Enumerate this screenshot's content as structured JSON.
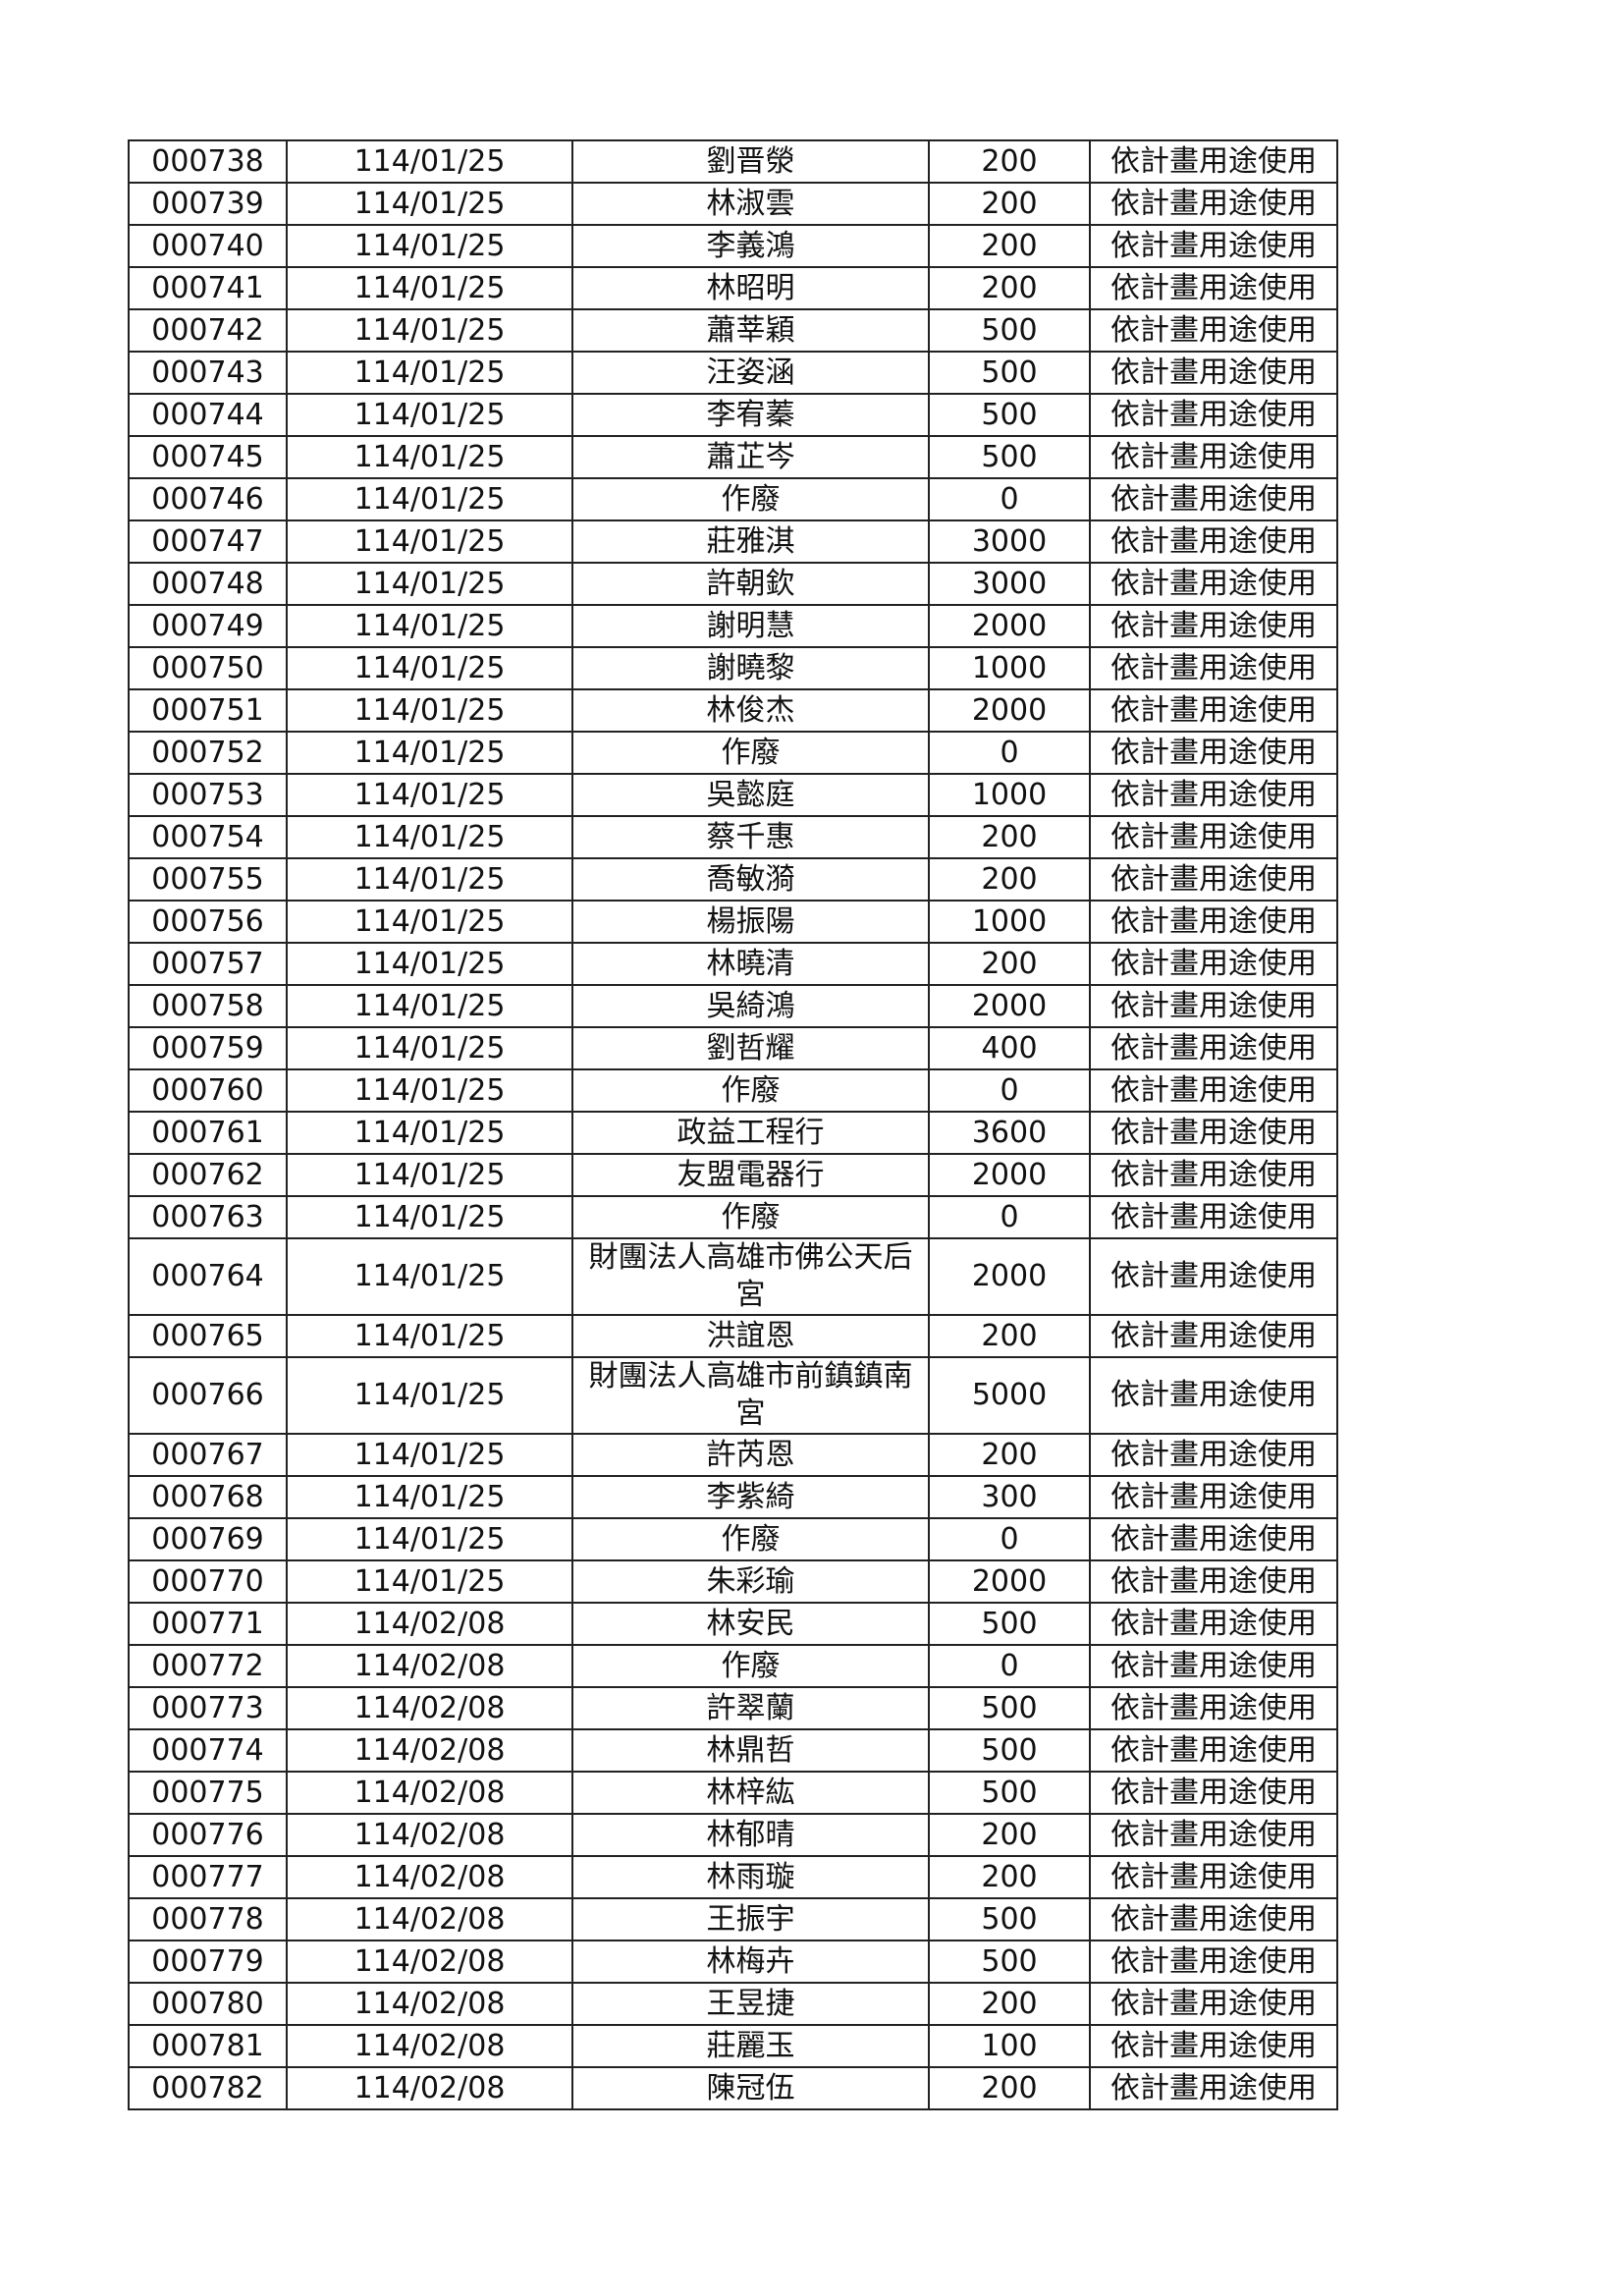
{
  "table": {
    "rows": [
      [
        "000738",
        "114/01/25",
        "劉晋滎",
        "200",
        "依計畫用途使用"
      ],
      [
        "000739",
        "114/01/25",
        "林淑雲",
        "200",
        "依計畫用途使用"
      ],
      [
        "000740",
        "114/01/25",
        "李義鴻",
        "200",
        "依計畫用途使用"
      ],
      [
        "000741",
        "114/01/25",
        "林昭明",
        "200",
        "依計畫用途使用"
      ],
      [
        "000742",
        "114/01/25",
        "蕭莘穎",
        "500",
        "依計畫用途使用"
      ],
      [
        "000743",
        "114/01/25",
        "汪姿涵",
        "500",
        "依計畫用途使用"
      ],
      [
        "000744",
        "114/01/25",
        "李宥蓁",
        "500",
        "依計畫用途使用"
      ],
      [
        "000745",
        "114/01/25",
        "蕭芷岑",
        "500",
        "依計畫用途使用"
      ],
      [
        "000746",
        "114/01/25",
        "作廢",
        "0",
        "依計畫用途使用"
      ],
      [
        "000747",
        "114/01/25",
        "莊雅淇",
        "3000",
        "依計畫用途使用"
      ],
      [
        "000748",
        "114/01/25",
        "許朝欽",
        "3000",
        "依計畫用途使用"
      ],
      [
        "000749",
        "114/01/25",
        "謝明慧",
        "2000",
        "依計畫用途使用"
      ],
      [
        "000750",
        "114/01/25",
        "謝曉黎",
        "1000",
        "依計畫用途使用"
      ],
      [
        "000751",
        "114/01/25",
        "林俊杰",
        "2000",
        "依計畫用途使用"
      ],
      [
        "000752",
        "114/01/25",
        "作廢",
        "0",
        "依計畫用途使用"
      ],
      [
        "000753",
        "114/01/25",
        "吳懿庭",
        "1000",
        "依計畫用途使用"
      ],
      [
        "000754",
        "114/01/25",
        "蔡千惠",
        "200",
        "依計畫用途使用"
      ],
      [
        "000755",
        "114/01/25",
        "喬敏漪",
        "200",
        "依計畫用途使用"
      ],
      [
        "000756",
        "114/01/25",
        "楊振陽",
        "1000",
        "依計畫用途使用"
      ],
      [
        "000757",
        "114/01/25",
        "林曉清",
        "200",
        "依計畫用途使用"
      ],
      [
        "000758",
        "114/01/25",
        "吳綺鴻",
        "2000",
        "依計畫用途使用"
      ],
      [
        "000759",
        "114/01/25",
        "劉哲耀",
        "400",
        "依計畫用途使用"
      ],
      [
        "000760",
        "114/01/25",
        "作廢",
        "0",
        "依計畫用途使用"
      ],
      [
        "000761",
        "114/01/25",
        "政益工程行",
        "3600",
        "依計畫用途使用"
      ],
      [
        "000762",
        "114/01/25",
        "友盟電器行",
        "2000",
        "依計畫用途使用"
      ],
      [
        "000763",
        "114/01/25",
        "作廢",
        "0",
        "依計畫用途使用"
      ],
      [
        "000764",
        "114/01/25",
        "財團法人高雄市佛公天后宮",
        "2000",
        "依計畫用途使用"
      ],
      [
        "000765",
        "114/01/25",
        "洪誼恩",
        "200",
        "依計畫用途使用"
      ],
      [
        "000766",
        "114/01/25",
        "財團法人高雄市前鎮鎮南宮",
        "5000",
        "依計畫用途使用"
      ],
      [
        "000767",
        "114/01/25",
        "許芮恩",
        "200",
        "依計畫用途使用"
      ],
      [
        "000768",
        "114/01/25",
        "李紫綺",
        "300",
        "依計畫用途使用"
      ],
      [
        "000769",
        "114/01/25",
        "作廢",
        "0",
        "依計畫用途使用"
      ],
      [
        "000770",
        "114/01/25",
        "朱彩瑜",
        "2000",
        "依計畫用途使用"
      ],
      [
        "000771",
        "114/02/08",
        "林安民",
        "500",
        "依計畫用途使用"
      ],
      [
        "000772",
        "114/02/08",
        "作廢",
        "0",
        "依計畫用途使用"
      ],
      [
        "000773",
        "114/02/08",
        "許翠蘭",
        "500",
        "依計畫用途使用"
      ],
      [
        "000774",
        "114/02/08",
        "林鼎哲",
        "500",
        "依計畫用途使用"
      ],
      [
        "000775",
        "114/02/08",
        "林梓紘",
        "500",
        "依計畫用途使用"
      ],
      [
        "000776",
        "114/02/08",
        "林郁晴",
        "200",
        "依計畫用途使用"
      ],
      [
        "000777",
        "114/02/08",
        "林雨璇",
        "200",
        "依計畫用途使用"
      ],
      [
        "000778",
        "114/02/08",
        "王振宇",
        "500",
        "依計畫用途使用"
      ],
      [
        "000779",
        "114/02/08",
        "林梅卉",
        "500",
        "依計畫用途使用"
      ],
      [
        "000780",
        "114/02/08",
        "王昱捷",
        "200",
        "依計畫用途使用"
      ],
      [
        "000781",
        "114/02/08",
        "莊麗玉",
        "100",
        "依計畫用途使用"
      ],
      [
        "000782",
        "114/02/08",
        "陳冠伍",
        "200",
        "依計畫用途使用"
      ]
    ]
  }
}
